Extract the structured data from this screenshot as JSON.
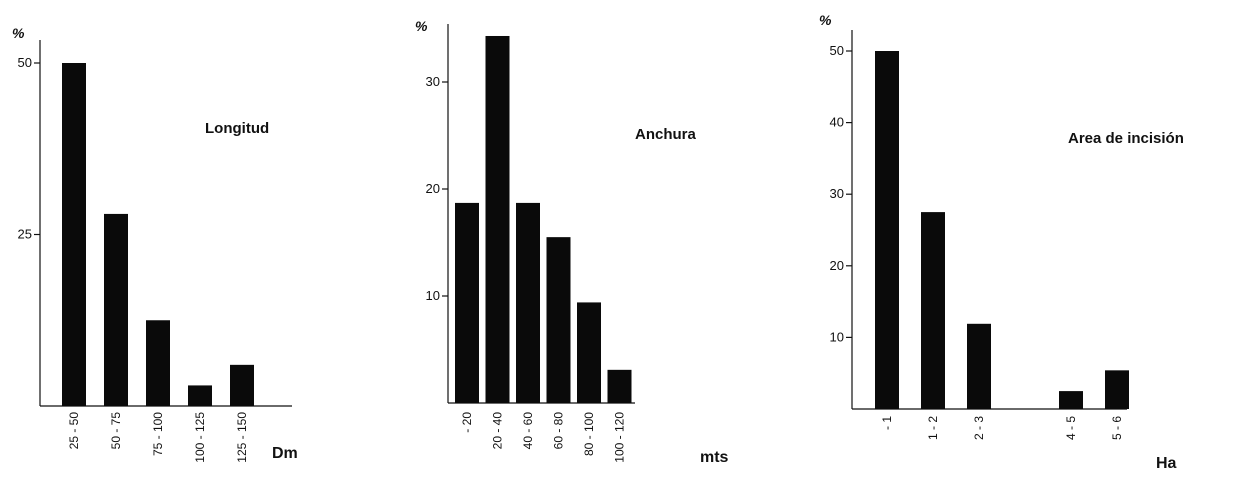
{
  "chart_data": [
    {
      "type": "bar",
      "title": "Longitud",
      "xlabel": "Dm",
      "ylabel": "%",
      "categories": [
        "25 - 50",
        "50 - 75",
        "75 - 100",
        "100 - 125",
        "125 - 150"
      ],
      "values": [
        50,
        28,
        12.5,
        3,
        6
      ],
      "ylim": [
        0,
        52
      ],
      "yticks": [
        25,
        50
      ],
      "ytick_labels": [
        "25",
        "50"
      ]
    },
    {
      "type": "bar",
      "title": "Anchura",
      "xlabel": "mts",
      "ylabel": "%",
      "categories": [
        "- 20",
        "20 - 40",
        "40 - 60",
        "60 - 80",
        "80 - 100",
        "100 - 120"
      ],
      "values": [
        18.7,
        34.3,
        18.7,
        15.5,
        9.4,
        3.1
      ],
      "ylim": [
        0,
        35
      ],
      "yticks": [
        10,
        20,
        30
      ],
      "ytick_labels": [
        "10",
        "20",
        "30"
      ]
    },
    {
      "type": "bar",
      "title": "Area de incisión",
      "xlabel": "Ha",
      "ylabel": "%",
      "categories": [
        "- 1",
        "1 - 2",
        "2 - 3",
        "",
        "4 - 5",
        "5 - 6"
      ],
      "values": [
        50,
        27.5,
        11.9,
        0,
        2.5,
        5.4
      ],
      "ylim": [
        0,
        52
      ],
      "yticks": [
        10,
        20,
        30,
        40,
        50
      ],
      "ytick_labels": [
        "10",
        "20",
        "30",
        "40",
        "50"
      ]
    }
  ]
}
